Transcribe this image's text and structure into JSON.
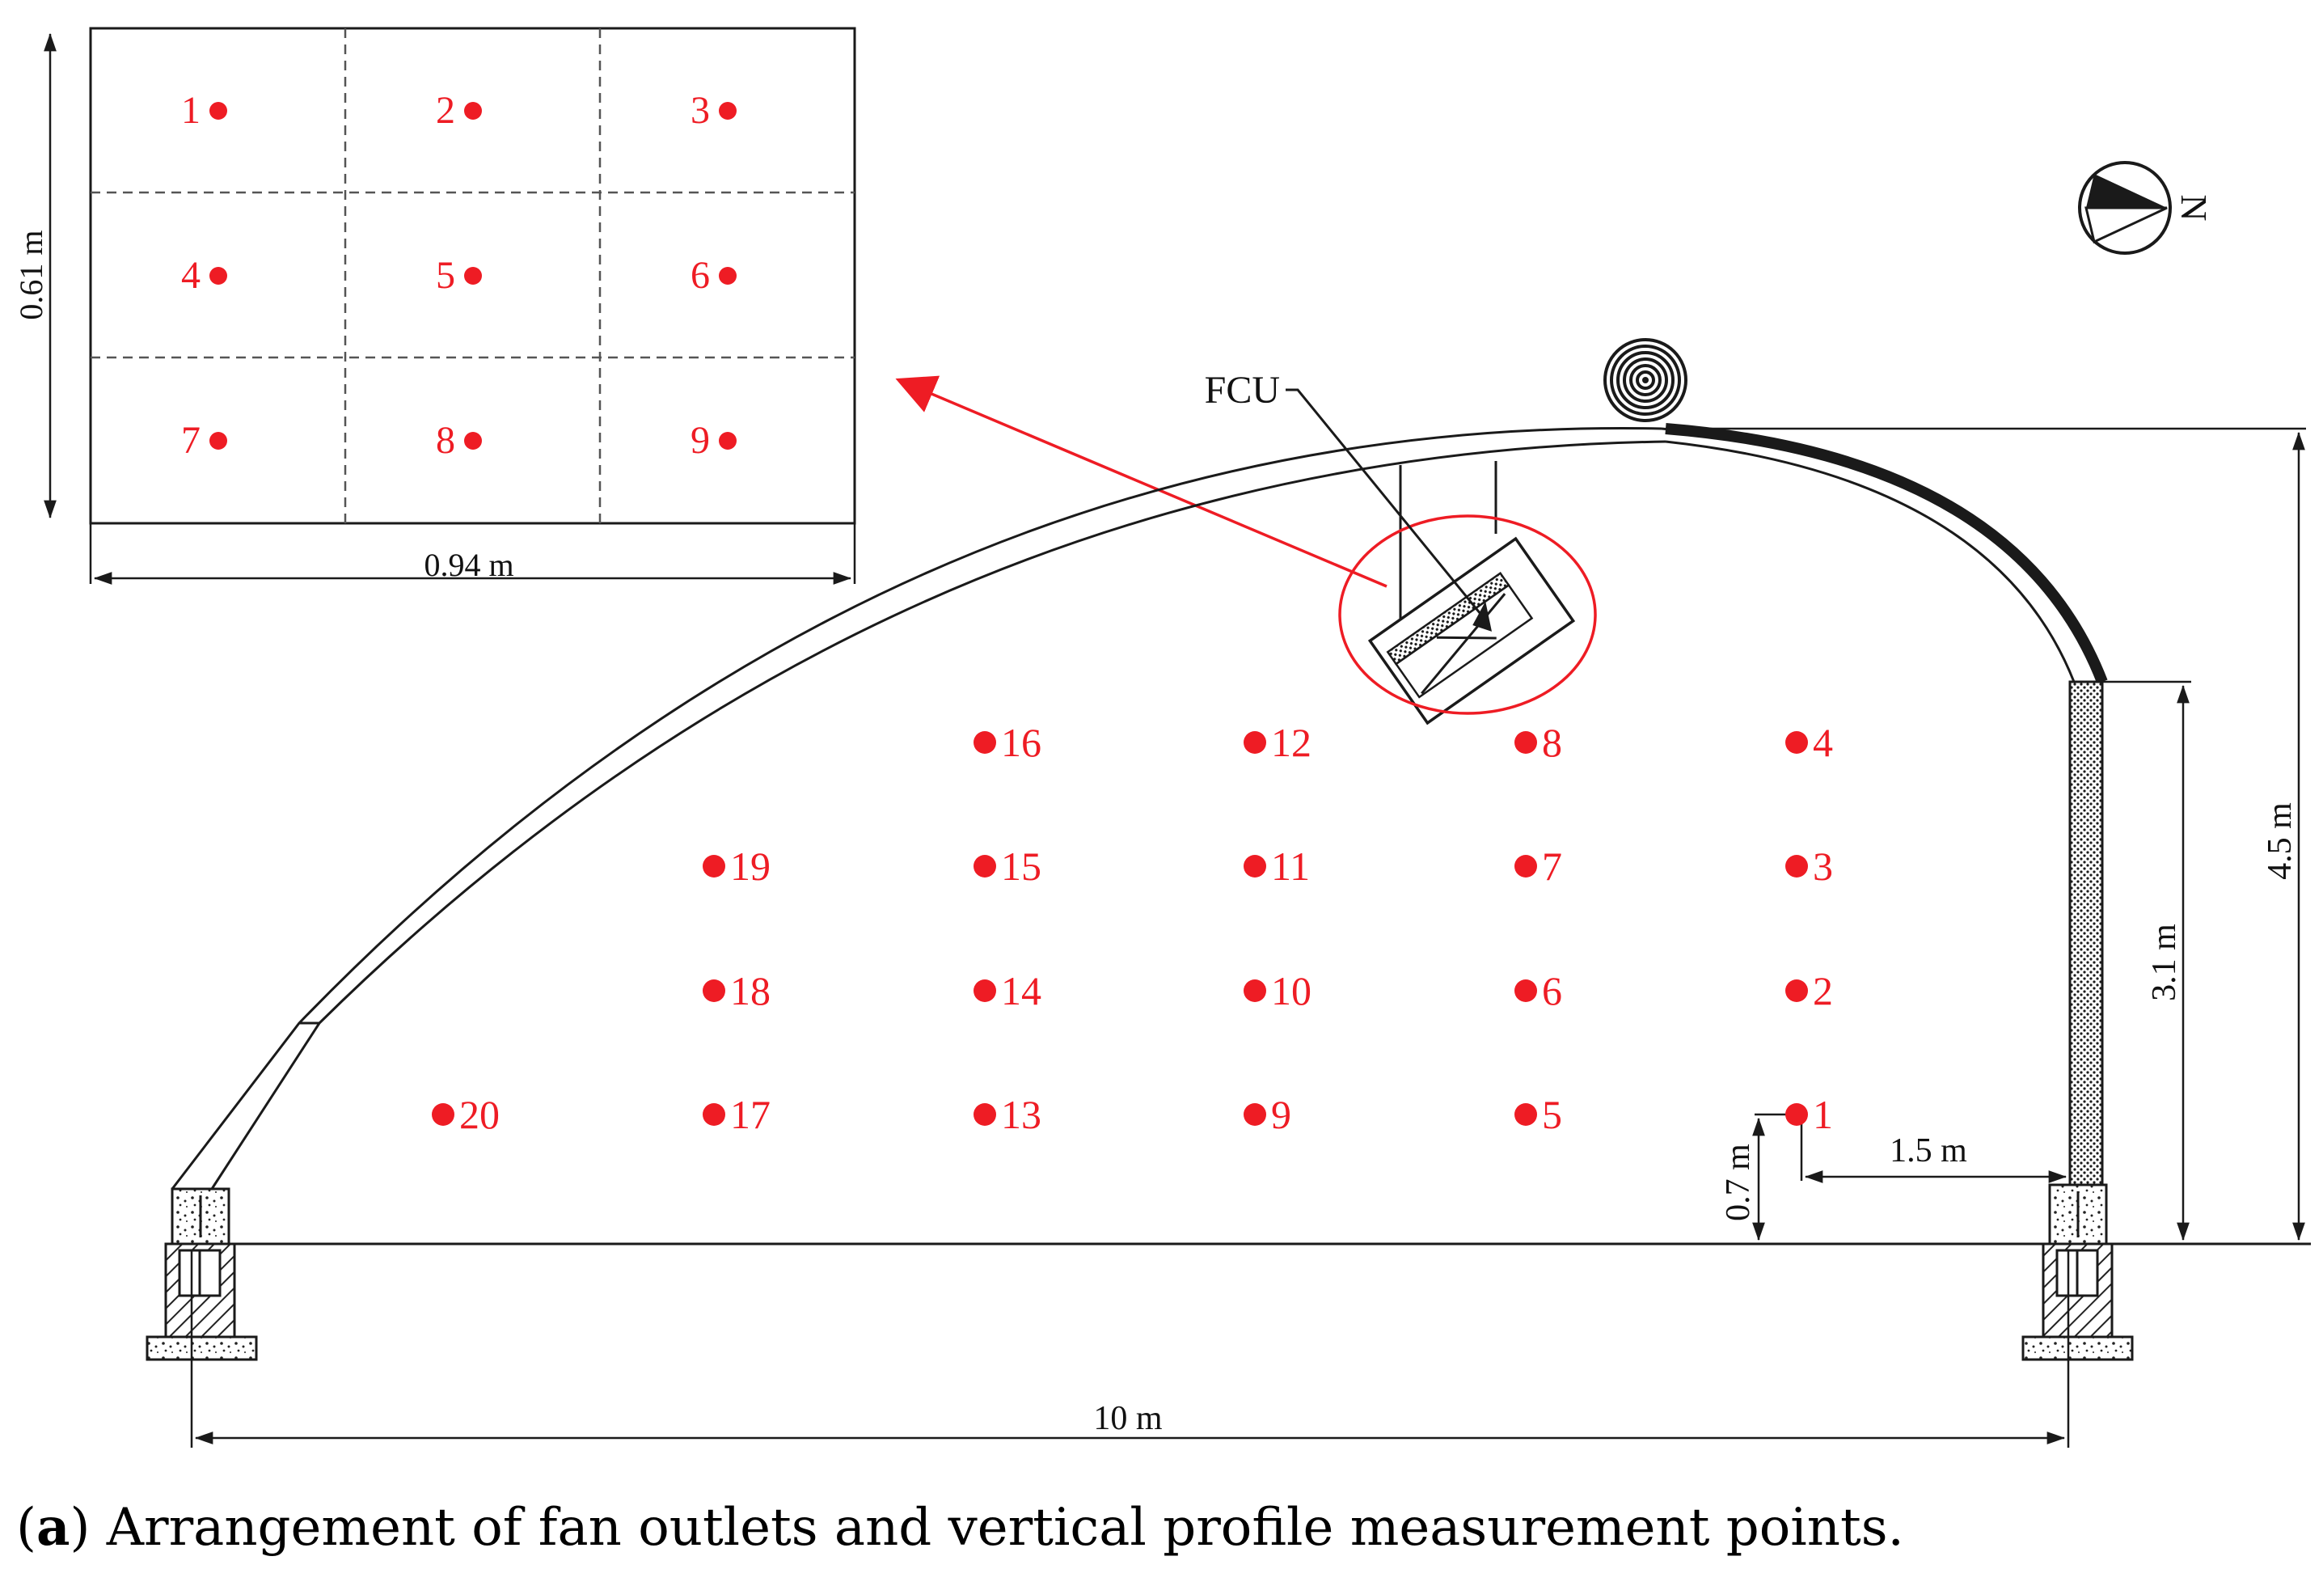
{
  "caption": {
    "prefix": "(",
    "letter": "a",
    "text": ") Arrangement of fan outlets and vertical profile measurement points."
  },
  "inset": {
    "width_label": "0.94 m",
    "height_label": "0.61 m",
    "outlet_points": [
      "1",
      "2",
      "3",
      "4",
      "5",
      "6",
      "7",
      "8",
      "9"
    ]
  },
  "fcu": {
    "label": "FCU"
  },
  "compass": {
    "label": "N"
  },
  "dimensions": {
    "span": "10 m",
    "ridge_height": "4.5 m",
    "wall_height": "3.1 m",
    "point_height": "0.7 m",
    "wall_offset": "1.5 m"
  },
  "profile_points": [
    "1",
    "2",
    "3",
    "4",
    "5",
    "6",
    "7",
    "8",
    "9",
    "10",
    "11",
    "12",
    "13",
    "14",
    "15",
    "16",
    "17",
    "18",
    "19",
    "20"
  ],
  "colors": {
    "marker": "#ee1c24",
    "line": "#1a1a1a"
  }
}
